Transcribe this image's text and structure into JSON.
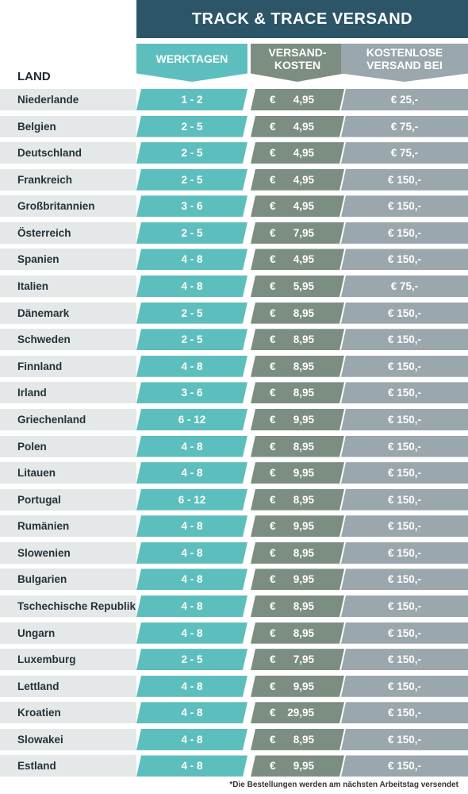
{
  "header": {
    "title": "TRACK & TRACE VERSAND",
    "col_land": "LAND",
    "col_werktagen": "WERKTAGEN",
    "col_versandkosten_1": "VERSAND-",
    "col_versandkosten_2": "KOSTEN",
    "col_kostenlos_1": "KOSTENLOSE",
    "col_kostenlos_2": "VERSAND BEI"
  },
  "currency_symbol": "€",
  "rows": [
    {
      "land": "Niederlande",
      "werktage": "1 - 2",
      "kosten": "4,95",
      "kostenlos": "€ 25,-"
    },
    {
      "land": "Belgien",
      "werktage": "2 - 5",
      "kosten": "4,95",
      "kostenlos": "€ 75,-"
    },
    {
      "land": "Deutschland",
      "werktage": "2 - 5",
      "kosten": "4,95",
      "kostenlos": "€ 75,-"
    },
    {
      "land": "Frankreich",
      "werktage": "2 - 5",
      "kosten": "4,95",
      "kostenlos": "€ 150,-"
    },
    {
      "land": "Großbritannien",
      "werktage": "3 - 6",
      "kosten": "4,95",
      "kostenlos": "€ 150,-"
    },
    {
      "land": "Österreich",
      "werktage": "2 - 5",
      "kosten": "7,95",
      "kostenlos": "€ 150,-"
    },
    {
      "land": "Spanien",
      "werktage": "4 - 8",
      "kosten": "4,95",
      "kostenlos": "€ 150,-"
    },
    {
      "land": "Italien",
      "werktage": "4 - 8",
      "kosten": "5,95",
      "kostenlos": "€ 75,-"
    },
    {
      "land": "Dänemark",
      "werktage": "2 - 5",
      "kosten": "8,95",
      "kostenlos": "€ 150,-"
    },
    {
      "land": "Schweden",
      "werktage": "2 - 5",
      "kosten": "8,95",
      "kostenlos": "€ 150,-"
    },
    {
      "land": "Finnland",
      "werktage": "4 - 8",
      "kosten": "8,95",
      "kostenlos": "€ 150,-"
    },
    {
      "land": "Irland",
      "werktage": "3 - 6",
      "kosten": "8,95",
      "kostenlos": "€ 150,-"
    },
    {
      "land": "Griechenland",
      "werktage": "6 - 12",
      "kosten": "9,95",
      "kostenlos": "€ 150,-"
    },
    {
      "land": "Polen",
      "werktage": "4 - 8",
      "kosten": "8,95",
      "kostenlos": "€ 150,-"
    },
    {
      "land": "Litauen",
      "werktage": "4 - 8",
      "kosten": "9,95",
      "kostenlos": "€ 150,-"
    },
    {
      "land": "Portugal",
      "werktage": "6 - 12",
      "kosten": "8,95",
      "kostenlos": "€ 150,-"
    },
    {
      "land": "Rumänien",
      "werktage": "4 - 8",
      "kosten": "9,95",
      "kostenlos": "€ 150,-"
    },
    {
      "land": "Slowenien",
      "werktage": "4 - 8",
      "kosten": "8,95",
      "kostenlos": "€ 150,-"
    },
    {
      "land": "Bulgarien",
      "werktage": "4 - 8",
      "kosten": "9,95",
      "kostenlos": "€ 150,-"
    },
    {
      "land": "Tschechische Republik",
      "werktage": "4 - 8",
      "kosten": "8,95",
      "kostenlos": "€ 150,-"
    },
    {
      "land": "Ungarn",
      "werktage": "4 - 8",
      "kosten": "8,95",
      "kostenlos": "€ 150,-"
    },
    {
      "land": "Luxemburg",
      "werktage": "2 - 5",
      "kosten": "7,95",
      "kostenlos": "€ 150,-"
    },
    {
      "land": "Lettland",
      "werktage": "4 - 8",
      "kosten": "9,95",
      "kostenlos": "€ 150,-"
    },
    {
      "land": "Kroatien",
      "werktage": "4 - 8",
      "kosten": "29,95",
      "kostenlos": "€ 150,-"
    },
    {
      "land": "Slowakei",
      "werktage": "4 - 8",
      "kosten": "8,95",
      "kostenlos": "€ 150,-"
    },
    {
      "land": "Estland",
      "werktage": "4 - 8",
      "kosten": "9,95",
      "kostenlos": "€ 150,-"
    }
  ],
  "footnote": "*Die Bestellungen werden am nächsten Arbeitstag versendet",
  "colors": {
    "title_bg": "#2c5668",
    "werktagen": "#5dbfbd",
    "versandkosten": "#7c8d81",
    "kostenlos": "#9aa7ad",
    "land_bg": "#e4e8e8"
  }
}
